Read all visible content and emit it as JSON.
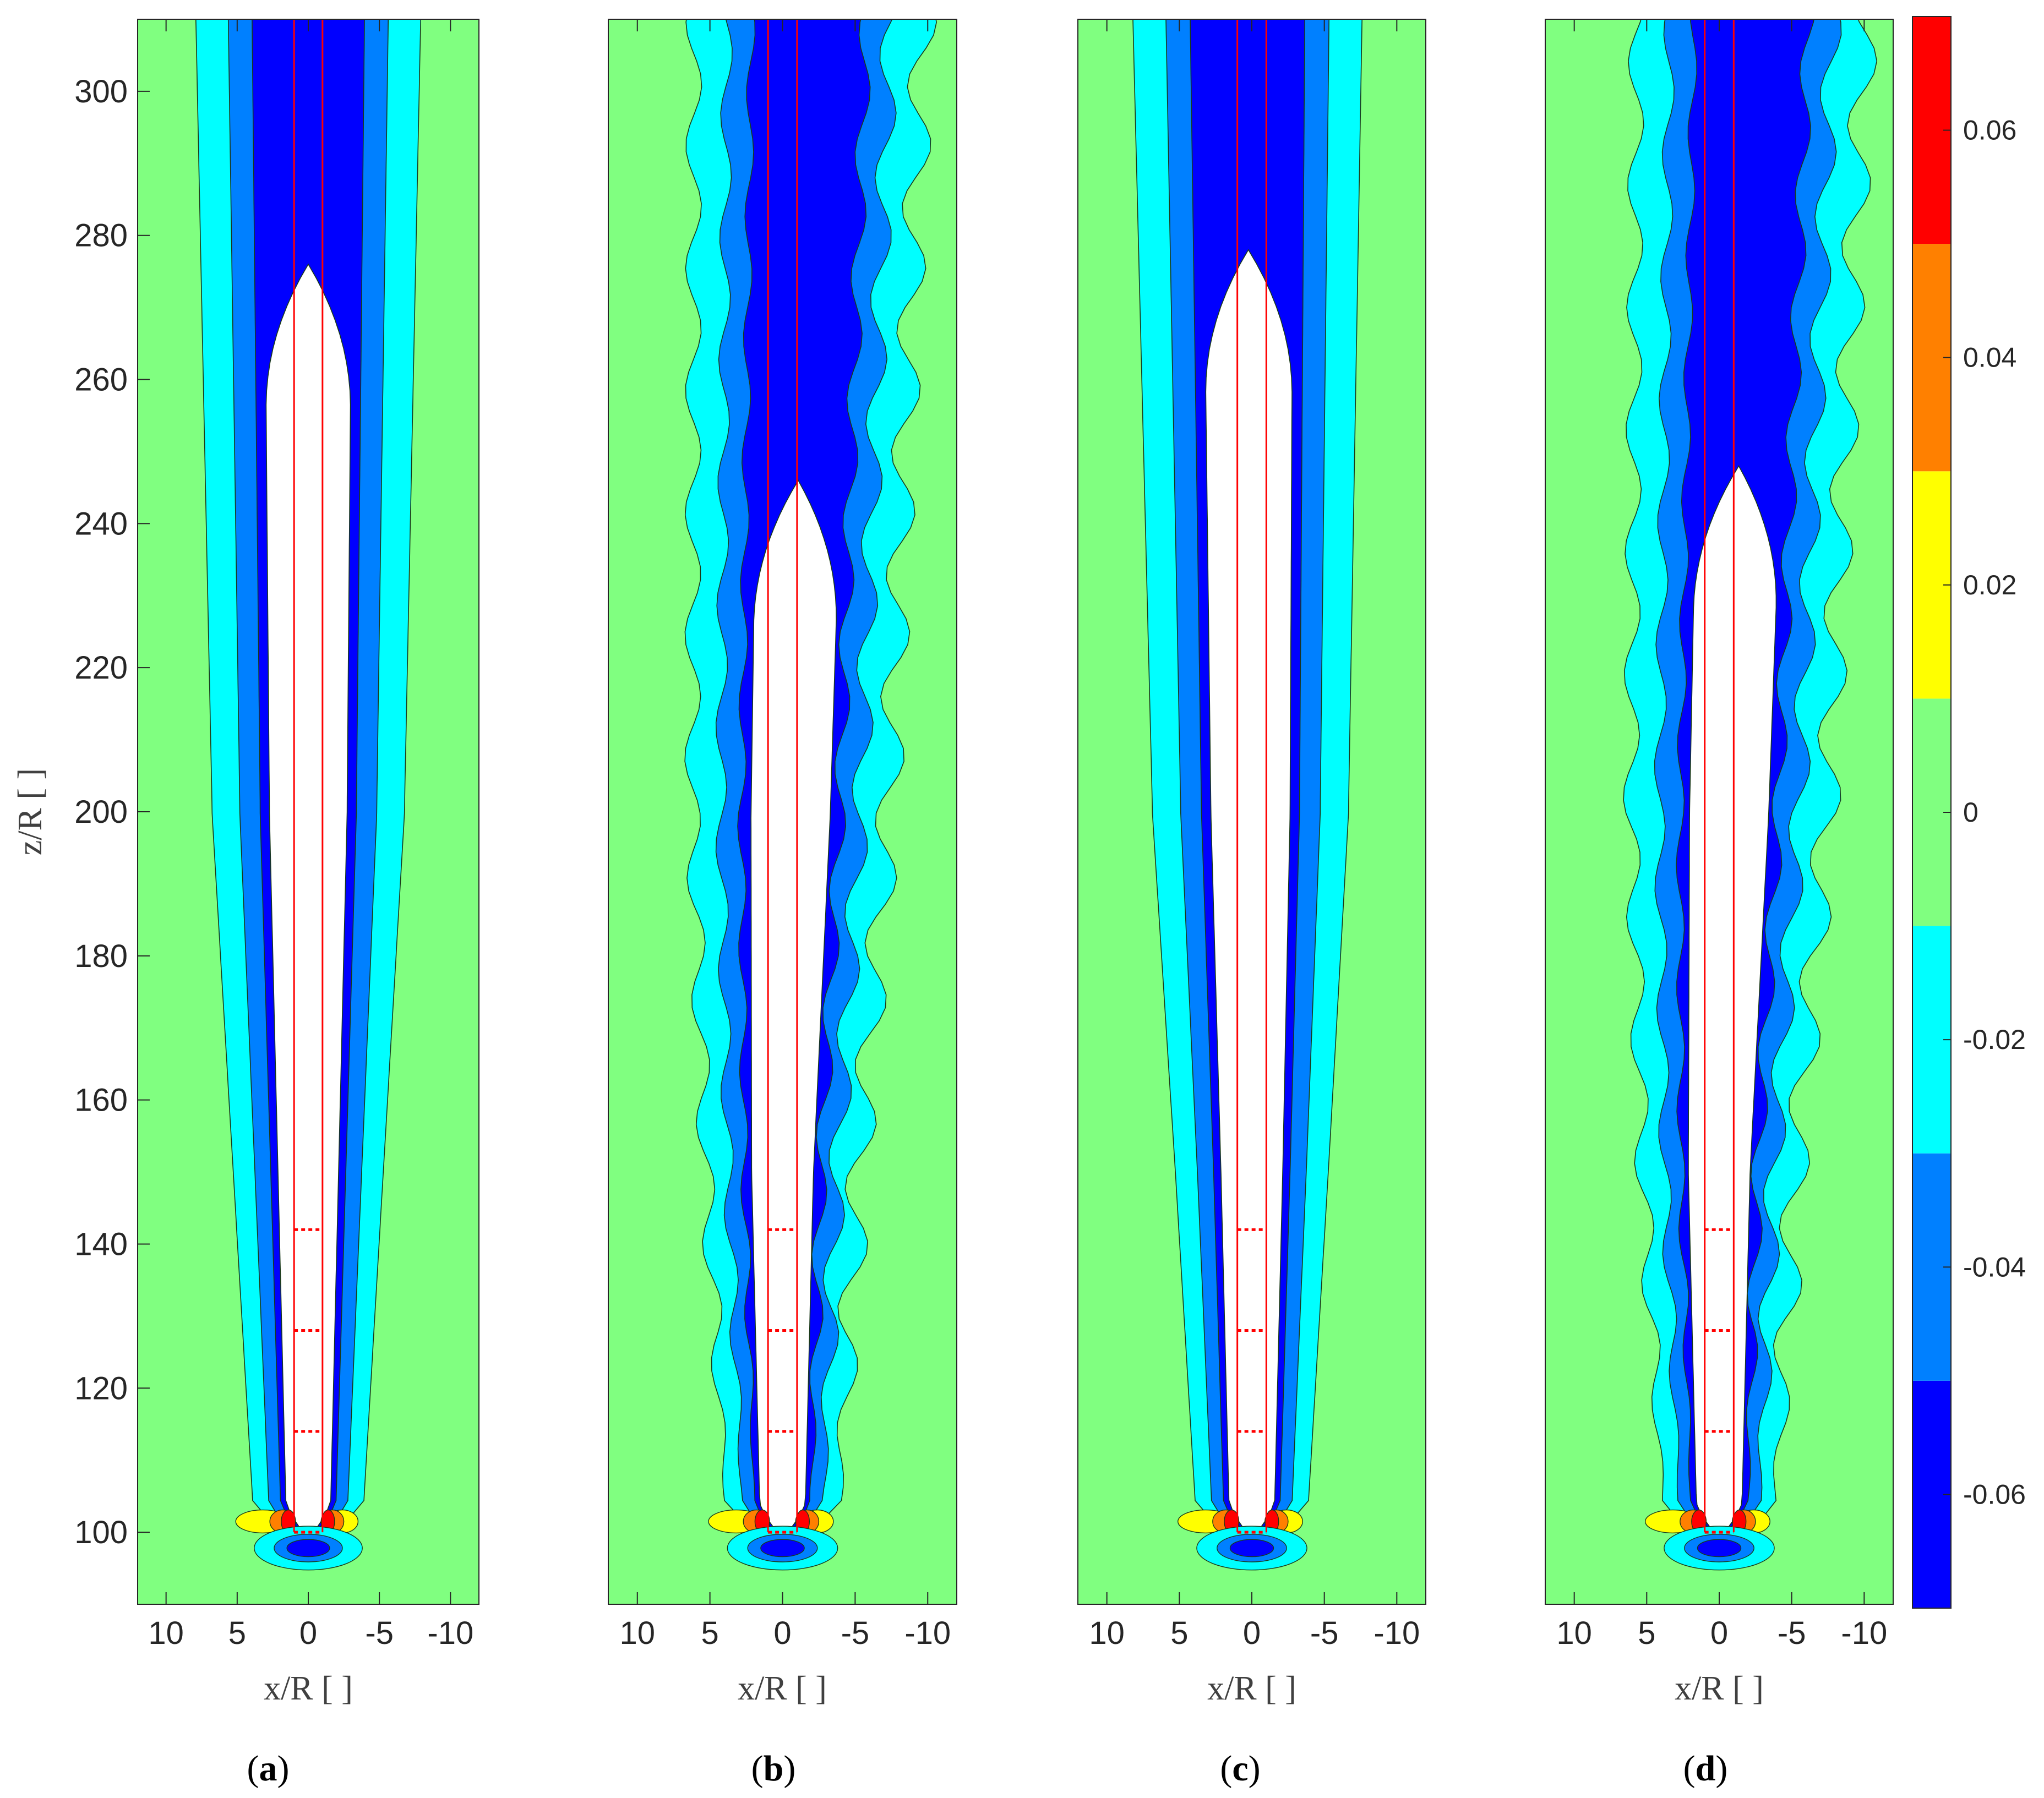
{
  "chart_data": {
    "type": "filled-contour",
    "levels": [
      -0.07,
      -0.05,
      -0.03,
      -0.01,
      0.01,
      0.03,
      0.05,
      0.07
    ],
    "level_colors": [
      "#0000ff",
      "#0080ff",
      "#00ffff",
      "#80ff80",
      "#ffff00",
      "#ff8000",
      "#ff0000"
    ],
    "below_range_color": "#ffffff",
    "colorbar": {
      "ticks": [
        -0.06,
        -0.04,
        -0.02,
        0,
        0.02,
        0.04,
        0.06
      ],
      "tick_labels": [
        "-0.06",
        "-0.04",
        "-0.02",
        "0",
        "0.02",
        "0.04",
        "0.06"
      ],
      "range": [
        -0.07,
        0.07
      ]
    },
    "xlabel": "x/R [ ]",
    "ylabel": "z/R [ ]",
    "xlim": [
      12,
      -12
    ],
    "ylim": [
      90,
      310
    ],
    "x_ticks": [
      10,
      5,
      0,
      -5,
      -10
    ],
    "x_tick_labels": [
      "10",
      "5",
      "0",
      "-5",
      "-10"
    ],
    "y_ticks": [
      100,
      120,
      140,
      160,
      180,
      200,
      220,
      240,
      260,
      280,
      300
    ],
    "y_tick_labels": [
      "100",
      "120",
      "140",
      "160",
      "180",
      "200",
      "220",
      "240",
      "260",
      "280",
      "300"
    ],
    "reference_lines": {
      "x": [
        1,
        -1
      ],
      "color": "#ff0000"
    },
    "dotted_segments": {
      "z": [
        100,
        114,
        128,
        142
      ],
      "x_from": 1,
      "x_to": -1,
      "color": "#ff0000"
    },
    "panels": [
      {
        "label": "a",
        "white_top": 276,
        "white_lean": 0.0,
        "noise": 0.0
      },
      {
        "label": "b",
        "white_top": 246,
        "white_lean": -1.8,
        "noise": 1.0
      },
      {
        "label": "c",
        "white_top": 278,
        "white_lean": 0.3,
        "noise": 0.0
      },
      {
        "label": "d",
        "white_top": 248,
        "white_lean": -2.2,
        "noise": 1.0
      }
    ]
  }
}
